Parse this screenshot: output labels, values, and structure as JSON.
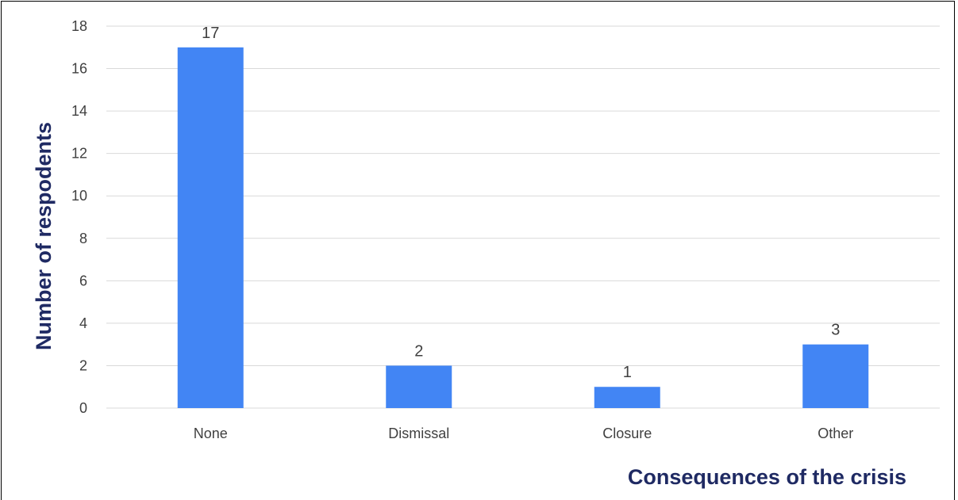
{
  "chart_data": {
    "type": "bar",
    "title": "",
    "categories": [
      "None",
      "Dismissal",
      "Closure",
      "Other"
    ],
    "values": [
      17,
      2,
      1,
      3
    ],
    "data_labels": [
      "17",
      "2",
      "1",
      "3"
    ],
    "xlabel": "Consequences of the crisis",
    "ylabel": "Number of respodents",
    "ylim": [
      0,
      18
    ],
    "yticks": [
      "0",
      "2",
      "4",
      "6",
      "8",
      "10",
      "12",
      "14",
      "16",
      "18"
    ],
    "grid": true,
    "legend": "none",
    "colors": {
      "bar": "#4285f4",
      "grid": "#d9d9d9",
      "tick_text": "#404040",
      "axis_title": "#1f2a63"
    }
  }
}
